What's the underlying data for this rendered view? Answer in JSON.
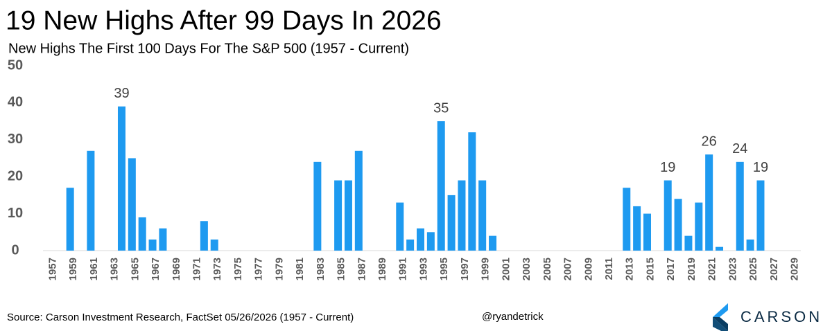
{
  "chart_data": {
    "type": "bar",
    "title": "19 New Highs After 99 Days In 2026",
    "subtitle": "New Highs The First 100 Days For The S&P 500 (1957 - Current)",
    "source": "Source: Carson Investment Research, FactSet 05/26/2026 (1957 - Current)",
    "credit": "@ryandetrick",
    "logo": "CARSON",
    "color": "#1e9af0",
    "ylim": [
      0,
      50
    ],
    "yticks": [
      0,
      10,
      20,
      30,
      40,
      50
    ],
    "grid": false,
    "categories": [
      "1957",
      null,
      "1959",
      null,
      "1961",
      null,
      "1963",
      null,
      "1965",
      null,
      "1967",
      null,
      "1969",
      null,
      "1971",
      null,
      "1973",
      null,
      "1975",
      null,
      "1977",
      null,
      "1979",
      null,
      "1981",
      null,
      "1983",
      null,
      "1985",
      null,
      "1987",
      null,
      "1989",
      null,
      "1991",
      null,
      "1993",
      null,
      "1995",
      null,
      "1997",
      null,
      "1999",
      null,
      "2001",
      null,
      "2003",
      null,
      "2005",
      null,
      "2007",
      null,
      "2009",
      null,
      "2011",
      null,
      "2013",
      null,
      "2015",
      null,
      "2017",
      null,
      "2019",
      null,
      "2021",
      null,
      "2023",
      null,
      "2025",
      null,
      "2027",
      null,
      "2029"
    ],
    "values": [
      0,
      0,
      17,
      0,
      27,
      0,
      0,
      39,
      25,
      9,
      3,
      6,
      0,
      0,
      0,
      8,
      3,
      0,
      0,
      0,
      0,
      0,
      0,
      0,
      0,
      0,
      24,
      0,
      19,
      19,
      27,
      0,
      0,
      0,
      13,
      3,
      6,
      5,
      35,
      15,
      19,
      32,
      19,
      4,
      0,
      0,
      0,
      0,
      0,
      0,
      0,
      0,
      0,
      0,
      0,
      0,
      17,
      12,
      10,
      0,
      19,
      14,
      4,
      13,
      26,
      1,
      0,
      24,
      3,
      19,
      null,
      null,
      null
    ],
    "value_labels": [
      null,
      null,
      null,
      null,
      null,
      null,
      null,
      "39",
      null,
      null,
      null,
      null,
      null,
      null,
      null,
      null,
      null,
      null,
      null,
      null,
      null,
      null,
      null,
      null,
      null,
      null,
      null,
      null,
      null,
      null,
      null,
      null,
      null,
      null,
      null,
      null,
      null,
      null,
      "35",
      null,
      null,
      null,
      null,
      null,
      null,
      null,
      null,
      null,
      null,
      null,
      null,
      null,
      null,
      null,
      null,
      null,
      null,
      null,
      null,
      null,
      "19",
      null,
      null,
      null,
      "26",
      null,
      null,
      "24",
      null,
      "19",
      null,
      null,
      null
    ]
  }
}
